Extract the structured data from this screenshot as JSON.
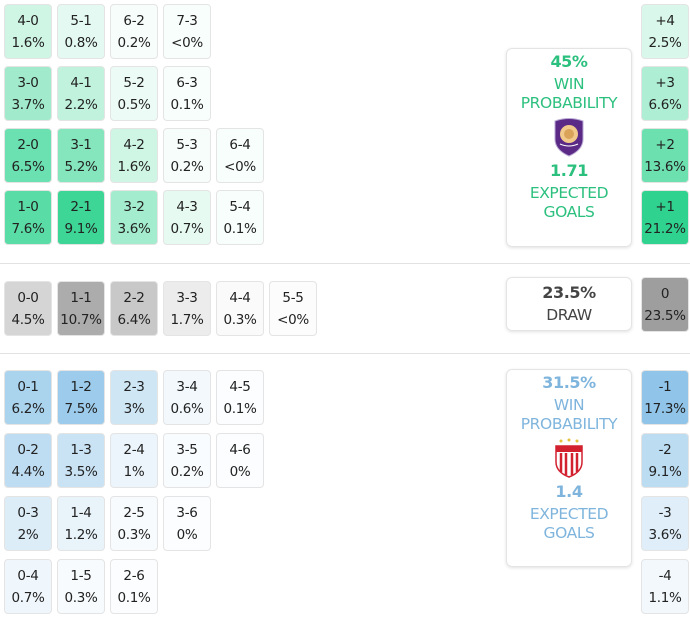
{
  "colors": {
    "home": "#2fd38f",
    "draw": "#9e9e9e",
    "away": "#8cc3e8",
    "home_text": "#2cc07f",
    "away_text": "#7fb5dd",
    "draw_text": "#444444"
  },
  "home_rows": [
    [
      {
        "score": "4-0",
        "pct": "1.6%"
      },
      {
        "score": "5-1",
        "pct": "0.8%"
      },
      {
        "score": "6-2",
        "pct": "0.2%"
      },
      {
        "score": "7-3",
        "pct": "<0%"
      }
    ],
    [
      {
        "score": "3-0",
        "pct": "3.7%"
      },
      {
        "score": "4-1",
        "pct": "2.2%"
      },
      {
        "score": "5-2",
        "pct": "0.5%"
      },
      {
        "score": "6-3",
        "pct": "0.1%"
      }
    ],
    [
      {
        "score": "2-0",
        "pct": "6.5%"
      },
      {
        "score": "3-1",
        "pct": "5.2%"
      },
      {
        "score": "4-2",
        "pct": "1.6%"
      },
      {
        "score": "5-3",
        "pct": "0.2%"
      },
      {
        "score": "6-4",
        "pct": "<0%"
      }
    ],
    [
      {
        "score": "1-0",
        "pct": "7.6%"
      },
      {
        "score": "2-1",
        "pct": "9.1%"
      },
      {
        "score": "3-2",
        "pct": "3.6%"
      },
      {
        "score": "4-3",
        "pct": "0.7%"
      },
      {
        "score": "5-4",
        "pct": "0.1%"
      }
    ]
  ],
  "draw_rows": [
    [
      {
        "score": "0-0",
        "pct": "4.5%"
      },
      {
        "score": "1-1",
        "pct": "10.7%"
      },
      {
        "score": "2-2",
        "pct": "6.4%"
      },
      {
        "score": "3-3",
        "pct": "1.7%"
      },
      {
        "score": "4-4",
        "pct": "0.3%"
      },
      {
        "score": "5-5",
        "pct": "<0%"
      }
    ]
  ],
  "away_rows": [
    [
      {
        "score": "0-1",
        "pct": "6.2%"
      },
      {
        "score": "1-2",
        "pct": "7.5%"
      },
      {
        "score": "2-3",
        "pct": "3%"
      },
      {
        "score": "3-4",
        "pct": "0.6%"
      },
      {
        "score": "4-5",
        "pct": "0.1%"
      }
    ],
    [
      {
        "score": "0-2",
        "pct": "4.4%"
      },
      {
        "score": "1-3",
        "pct": "3.5%"
      },
      {
        "score": "2-4",
        "pct": "1%"
      },
      {
        "score": "3-5",
        "pct": "0.2%"
      },
      {
        "score": "4-6",
        "pct": "0%"
      }
    ],
    [
      {
        "score": "0-3",
        "pct": "2%"
      },
      {
        "score": "1-4",
        "pct": "1.2%"
      },
      {
        "score": "2-5",
        "pct": "0.3%"
      },
      {
        "score": "3-6",
        "pct": "0%"
      }
    ],
    [
      {
        "score": "0-4",
        "pct": "0.7%"
      },
      {
        "score": "1-5",
        "pct": "0.3%"
      },
      {
        "score": "2-6",
        "pct": "0.1%"
      }
    ]
  ],
  "margins": {
    "home": [
      {
        "label": "+4",
        "pct": "2.5%"
      },
      {
        "label": "+3",
        "pct": "6.6%"
      },
      {
        "label": "+2",
        "pct": "13.6%"
      },
      {
        "label": "+1",
        "pct": "21.2%"
      }
    ],
    "draw": [
      {
        "label": "0",
        "pct": "23.5%"
      }
    ],
    "away": [
      {
        "label": "-1",
        "pct": "17.3%"
      },
      {
        "label": "-2",
        "pct": "9.1%"
      },
      {
        "label": "-3",
        "pct": "3.6%"
      },
      {
        "label": "-4",
        "pct": "1.1%"
      }
    ]
  },
  "home_card": {
    "win_pct": "45%",
    "win_label_1": "WIN",
    "win_label_2": "PROBABILITY",
    "xg": "1.71",
    "xg_label_1": "EXPECTED",
    "xg_label_2": "GOALS",
    "logo": "orlando-city-crest",
    "logo_text": "ORLANDO CITY"
  },
  "draw_card": {
    "pct": "23.5%",
    "label": "DRAW"
  },
  "away_card": {
    "win_pct": "31.5%",
    "win_label_1": "WIN",
    "win_label_2": "PROBABILITY",
    "xg": "1.4",
    "xg_label_1": "EXPECTED",
    "xg_label_2": "GOALS",
    "logo": "necaxa-crest"
  }
}
